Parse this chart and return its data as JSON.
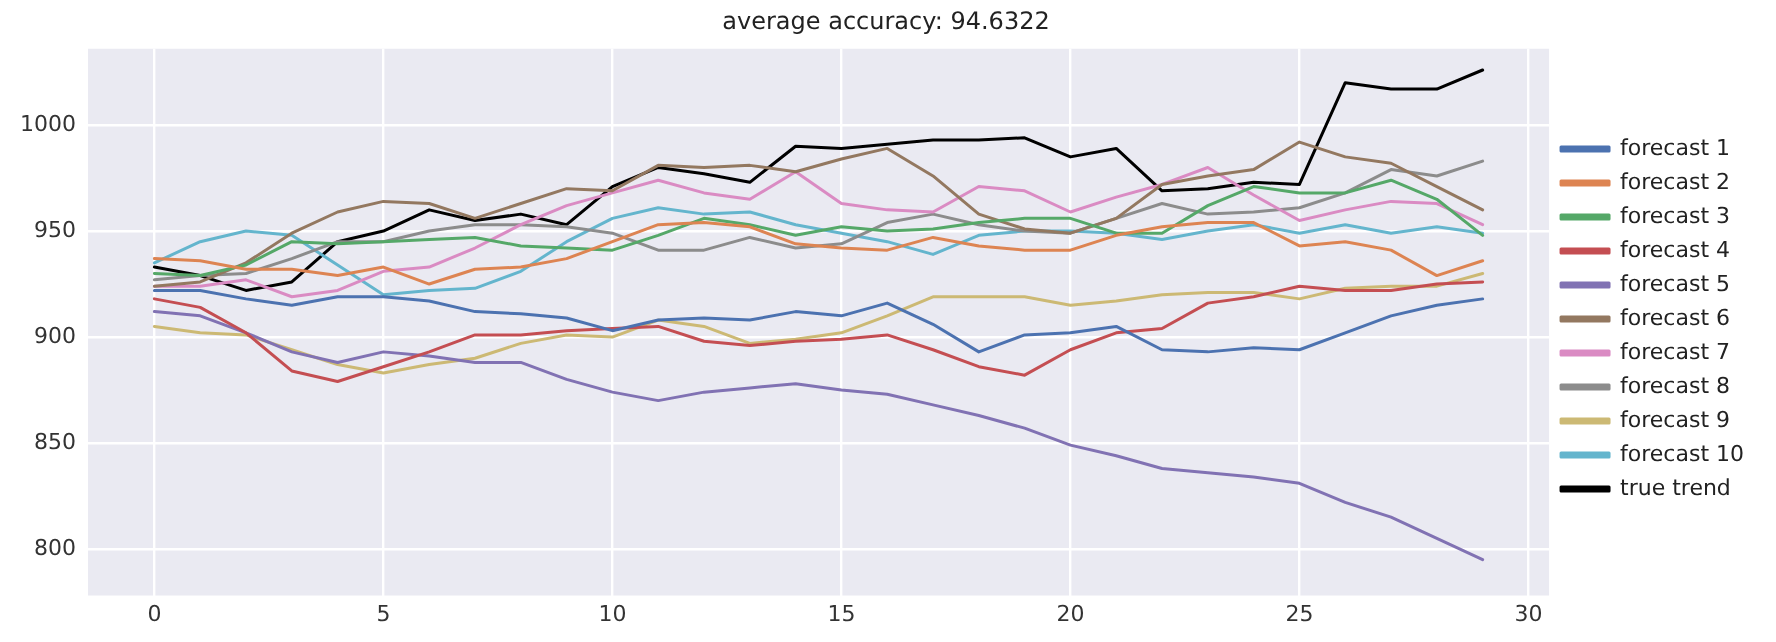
{
  "chart_data": {
    "type": "line",
    "title": "average accuracy: 94.6322",
    "x": [
      0,
      1,
      2,
      3,
      4,
      5,
      6,
      7,
      8,
      9,
      10,
      11,
      12,
      13,
      14,
      15,
      16,
      17,
      18,
      19,
      20,
      21,
      22,
      23,
      24,
      25,
      26,
      27,
      28,
      29
    ],
    "xlim": [
      -1.45,
      30.45
    ],
    "xticks": [
      0,
      5,
      10,
      15,
      20,
      25,
      30
    ],
    "ylim": [
      778,
      1036
    ],
    "yticks": [
      800,
      850,
      900,
      950,
      1000
    ],
    "grid": true,
    "legend": "right",
    "marker": "none",
    "line_style": "solid",
    "series": [
      {
        "name": "forecast 1",
        "color": "#4c72b0",
        "values": [
          922,
          922,
          918,
          915,
          919,
          919,
          917,
          912,
          911,
          909,
          903,
          908,
          909,
          908,
          912,
          910,
          916,
          906,
          893,
          901,
          902,
          905,
          894,
          893,
          895,
          894,
          902,
          910,
          915,
          918
        ]
      },
      {
        "name": "forecast 2",
        "color": "#dd8452",
        "values": [
          937,
          936,
          932,
          932,
          929,
          933,
          925,
          932,
          933,
          937,
          945,
          953,
          954,
          952,
          944,
          942,
          941,
          947,
          943,
          941,
          941,
          948,
          952,
          954,
          954,
          943,
          945,
          941,
          929,
          936
        ]
      },
      {
        "name": "forecast 3",
        "color": "#55a868",
        "values": [
          930,
          929,
          934,
          945,
          944,
          945,
          946,
          947,
          943,
          942,
          941,
          948,
          956,
          953,
          948,
          952,
          950,
          951,
          954,
          956,
          956,
          949,
          949,
          962,
          971,
          968,
          968,
          974,
          965,
          948
        ]
      },
      {
        "name": "forecast 4",
        "color": "#c44e52",
        "values": [
          918,
          914,
          902,
          884,
          879,
          886,
          893,
          901,
          901,
          903,
          904,
          905,
          898,
          896,
          898,
          899,
          901,
          894,
          886,
          882,
          894,
          902,
          904,
          916,
          919,
          924,
          922,
          922,
          925,
          926
        ]
      },
      {
        "name": "forecast 5",
        "color": "#8172b3",
        "values": [
          912,
          910,
          902,
          893,
          888,
          893,
          891,
          888,
          888,
          880,
          874,
          870,
          874,
          876,
          878,
          875,
          873,
          868,
          863,
          857,
          849,
          844,
          838,
          836,
          834,
          831,
          822,
          815,
          805,
          795
        ]
      },
      {
        "name": "forecast 6",
        "color": "#937860",
        "values": [
          924,
          926,
          935,
          949,
          959,
          964,
          963,
          956,
          963,
          970,
          969,
          981,
          980,
          981,
          978,
          984,
          989,
          976,
          958,
          951,
          949,
          956,
          972,
          976,
          979,
          992,
          985,
          982,
          971,
          960
        ]
      },
      {
        "name": "forecast 7",
        "color": "#da8bc3",
        "values": [
          924,
          924,
          927,
          919,
          922,
          931,
          933,
          942,
          953,
          962,
          968,
          974,
          968,
          965,
          978,
          963,
          960,
          959,
          971,
          969,
          959,
          966,
          972,
          980,
          967,
          955,
          960,
          964,
          963,
          953
        ]
      },
      {
        "name": "forecast 8",
        "color": "#8c8c8c",
        "values": [
          927,
          929,
          930,
          937,
          945,
          945,
          950,
          953,
          953,
          952,
          949,
          941,
          941,
          947,
          942,
          944,
          954,
          958,
          953,
          950,
          949,
          956,
          963,
          958,
          959,
          961,
          968,
          979,
          976,
          983
        ]
      },
      {
        "name": "forecast 9",
        "color": "#ccb974",
        "values": [
          905,
          902,
          901,
          894,
          887,
          883,
          887,
          890,
          897,
          901,
          900,
          908,
          905,
          897,
          899,
          902,
          910,
          919,
          919,
          919,
          915,
          917,
          920,
          921,
          921,
          918,
          923,
          924,
          924,
          930
        ]
      },
      {
        "name": "forecast 10",
        "color": "#64b5cd",
        "values": [
          935,
          945,
          950,
          948,
          934,
          920,
          922,
          923,
          931,
          945,
          956,
          961,
          958,
          959,
          953,
          949,
          945,
          939,
          948,
          950,
          950,
          949,
          946,
          950,
          953,
          949,
          953,
          949,
          952,
          949
        ]
      },
      {
        "name": "true trend",
        "color": "#000000",
        "values": [
          933,
          929,
          922,
          926,
          945,
          950,
          960,
          955,
          958,
          953,
          971,
          980,
          977,
          973,
          990,
          989,
          991,
          993,
          993,
          994,
          985,
          989,
          969,
          970,
          973,
          972,
          1020,
          1017,
          1017,
          1026
        ]
      }
    ]
  }
}
